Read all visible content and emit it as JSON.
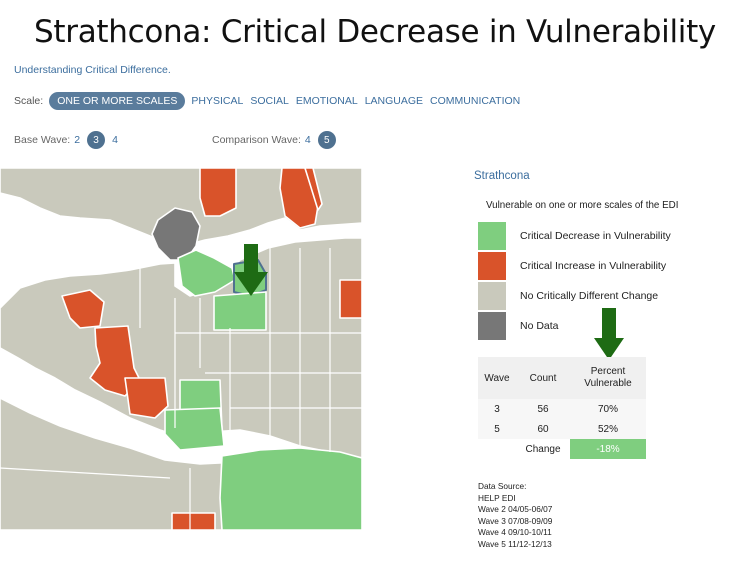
{
  "title": "Strathcona: Critical Decrease in Vulnerability",
  "link_text": "Understanding Critical Difference.",
  "scale": {
    "label": "Scale:",
    "selected": "ONE OR MORE SCALES",
    "options": [
      "PHYSICAL",
      "SOCIAL",
      "EMOTIONAL",
      "LANGUAGE",
      "COMMUNICATION"
    ]
  },
  "base_wave": {
    "label": "Base Wave:",
    "options": [
      "2",
      "3",
      "4"
    ],
    "selected": "3"
  },
  "comparison_wave": {
    "label": "Comparison Wave:",
    "options": [
      "4",
      "5"
    ],
    "selected": "5"
  },
  "legend": {
    "title": "Strathcona",
    "subtitle": "Vulnerable on one or more scales of the EDI",
    "items": [
      {
        "label": "Critical Decrease in Vulnerability",
        "color": "#7fce7f"
      },
      {
        "label": "Critical Increase in Vulnerability",
        "color": "#d9532a"
      },
      {
        "label": "No Critically Different Change",
        "color": "#c9c9bc"
      },
      {
        "label": "No Data",
        "color": "#777777"
      }
    ]
  },
  "table": {
    "headers": [
      "Wave",
      "Count",
      "Percent Vulnerable"
    ],
    "rows": [
      {
        "wave": "3",
        "count": "56",
        "percent": "70%"
      },
      {
        "wave": "5",
        "count": "60",
        "percent": "52%"
      }
    ],
    "change_label": "Change",
    "change_value": "-18%"
  },
  "data_source": {
    "lines": [
      "Data Source:",
      "HELP EDI",
      "Wave 2 04/05-06/07",
      "Wave 3 07/08-09/09",
      "Wave 4 09/10-10/11",
      "Wave 5 11/12-12/13"
    ]
  },
  "colors": {
    "decrease": "#7fce7f",
    "increase": "#d9532a",
    "no_change": "#c9c9bc",
    "no_data": "#777777",
    "water": "#ffffff",
    "arrow": "#1e6b14",
    "accent": "#3c6e9e"
  }
}
